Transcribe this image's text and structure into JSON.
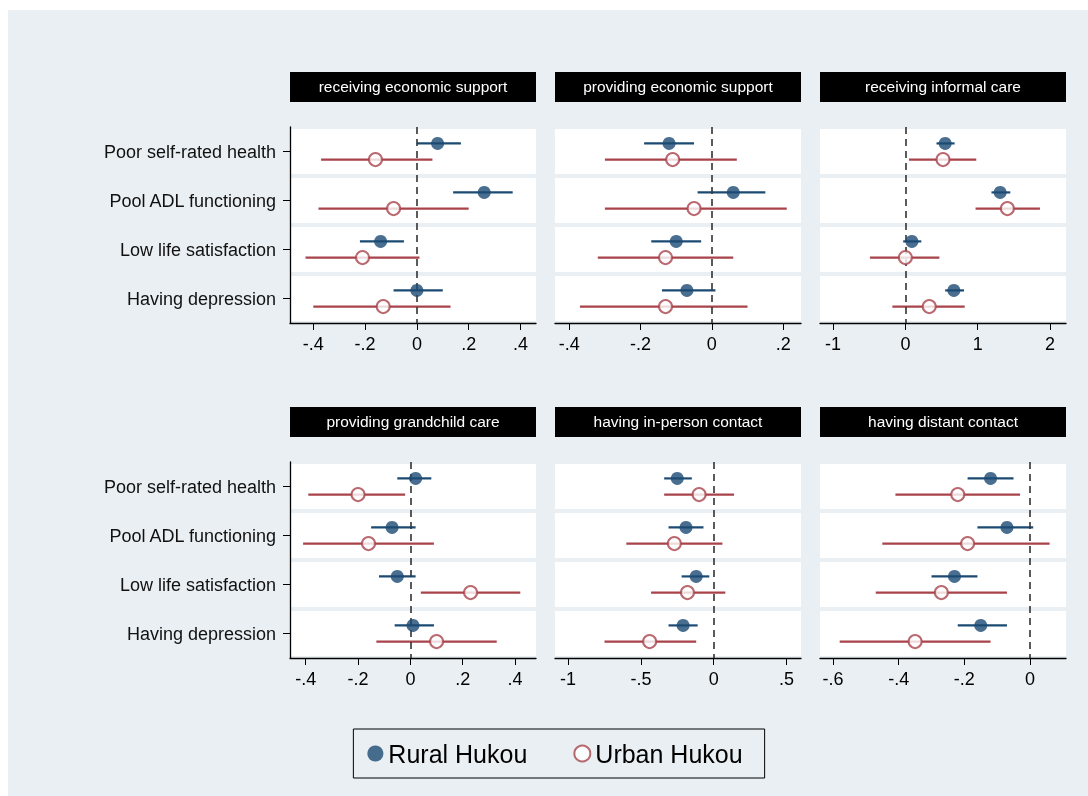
{
  "chart_data": [
    {
      "type": "scatter",
      "title": "receiving economic support",
      "orientation": "horizontal",
      "categories": [
        "Poor self-rated health",
        "Pool ADL functioning",
        "Low life satisfaction",
        "Having depression"
      ],
      "series": [
        {
          "color": "#1b4a73",
          "values": [
            0.08,
            0.26,
            -0.14,
            0.0
          ],
          "errors": [
            [
              0.0,
              0.17
            ],
            [
              0.14,
              0.37
            ],
            [
              -0.22,
              -0.05
            ],
            [
              -0.09,
              0.1
            ]
          ]
        },
        {
          "color": "#a8434b",
          "values": [
            -0.16,
            -0.09,
            -0.21,
            -0.13
          ],
          "errors": [
            [
              -0.37,
              0.06
            ],
            [
              -0.38,
              0.2
            ],
            [
              -0.43,
              0.01
            ],
            [
              -0.4,
              0.13
            ]
          ]
        }
      ],
      "xlim": [
        -0.49,
        0.46
      ],
      "xticks": [
        {
          "value": -0.4,
          "label": "-.4"
        },
        {
          "value": -0.2,
          "label": "-.2"
        },
        0,
        {
          "value": 0.2,
          "label": ".2"
        },
        {
          "value": 0.4,
          "label": ".4"
        }
      ],
      "ref_lines": [
        {
          "axis": "x",
          "value": 0,
          "color": "#333333",
          "line_style": "dashed"
        }
      ],
      "grid": "y",
      "marker": "circle"
    },
    {
      "type": "scatter",
      "title": "providing economic support",
      "orientation": "horizontal",
      "categories": [
        null,
        null,
        null,
        null
      ],
      "series": [
        {
          "color": "#1b4a73",
          "values": [
            -0.12,
            0.06,
            -0.1,
            -0.07
          ],
          "errors": [
            [
              -0.19,
              -0.05
            ],
            [
              -0.04,
              0.15
            ],
            [
              -0.17,
              -0.03
            ],
            [
              -0.14,
              0.01
            ]
          ]
        },
        {
          "color": "#a8434b",
          "values": [
            -0.11,
            -0.05,
            -0.13,
            -0.13
          ],
          "errors": [
            [
              -0.3,
              0.07
            ],
            [
              -0.3,
              0.21
            ],
            [
              -0.32,
              0.06
            ],
            [
              -0.37,
              0.1
            ]
          ]
        }
      ],
      "xlim": [
        -0.44,
        0.25
      ],
      "xticks": [
        {
          "value": -0.4,
          "label": "-.4"
        },
        {
          "value": -0.2,
          "label": "-.2"
        },
        0,
        {
          "value": 0.2,
          "label": ".2"
        }
      ],
      "ref_lines": [
        {
          "axis": "x",
          "value": 0,
          "color": "#333333",
          "line_style": "dashed"
        }
      ],
      "grid": "y",
      "marker": "circle",
      "tick_labels": "x"
    },
    {
      "type": "scatter",
      "title": "receiving informal care",
      "orientation": "horizontal",
      "categories": [
        null,
        null,
        null,
        null
      ],
      "series": [
        {
          "color": "#1b4a73",
          "values": [
            0.55,
            1.31,
            0.09,
            0.67
          ],
          "errors": [
            [
              0.43,
              0.68
            ],
            [
              1.19,
              1.45
            ],
            [
              -0.03,
              0.22
            ],
            [
              0.55,
              0.81
            ]
          ]
        },
        {
          "color": "#a8434b",
          "values": [
            0.52,
            1.41,
            0.0,
            0.33
          ],
          "errors": [
            [
              0.05,
              0.98
            ],
            [
              0.97,
              1.86
            ],
            [
              -0.49,
              0.47
            ],
            [
              -0.18,
              0.82
            ]
          ]
        }
      ],
      "xlim": [
        -1.18,
        2.22
      ],
      "xticks": [
        -1,
        0,
        1,
        2
      ],
      "ref_lines": [
        {
          "axis": "x",
          "value": 0,
          "color": "#333333",
          "line_style": "dashed"
        }
      ],
      "grid": "y",
      "marker": "circle",
      "tick_labels": "x"
    },
    {
      "type": "scatter",
      "title": "providing grandchild care",
      "orientation": "horizontal",
      "categories": [
        "Poor self-rated health",
        "Pool ADL functioning",
        "Low life satisfaction",
        "Having depression"
      ],
      "series": [
        {
          "color": "#1b4a73",
          "values": [
            0.02,
            -0.07,
            -0.05,
            0.01
          ],
          "errors": [
            [
              -0.05,
              0.08
            ],
            [
              -0.15,
              0.02
            ],
            [
              -0.12,
              0.02
            ],
            [
              -0.06,
              0.09
            ]
          ]
        },
        {
          "color": "#a8434b",
          "values": [
            -0.2,
            -0.16,
            0.23,
            0.1
          ],
          "errors": [
            [
              -0.39,
              -0.02
            ],
            [
              -0.41,
              0.09
            ],
            [
              0.04,
              0.42
            ],
            [
              -0.13,
              0.33
            ]
          ]
        }
      ],
      "xlim": [
        -0.46,
        0.48
      ],
      "xticks": [
        {
          "value": -0.4,
          "label": "-.4"
        },
        {
          "value": -0.2,
          "label": "-.2"
        },
        0,
        {
          "value": 0.2,
          "label": ".2"
        },
        {
          "value": 0.4,
          "label": ".4"
        }
      ],
      "ref_lines": [
        {
          "axis": "x",
          "value": 0,
          "color": "#333333",
          "line_style": "dashed"
        }
      ],
      "grid": "y",
      "marker": "circle"
    },
    {
      "type": "scatter",
      "title": "having in-person contact",
      "orientation": "horizontal",
      "categories": [
        null,
        null,
        null,
        null
      ],
      "series": [
        {
          "name": "Rural Hukou",
          "color": "#1b4a73",
          "values": [
            -0.25,
            -0.19,
            -0.12,
            -0.21
          ],
          "errors": [
            [
              -0.34,
              -0.15
            ],
            [
              -0.31,
              -0.07
            ],
            [
              -0.22,
              -0.03
            ],
            [
              -0.31,
              -0.11
            ]
          ]
        },
        {
          "name": "Urban Hukou",
          "color": "#a8434b",
          "values": [
            -0.1,
            -0.27,
            -0.18,
            -0.44
          ],
          "errors": [
            [
              -0.34,
              0.14
            ],
            [
              -0.6,
              0.06
            ],
            [
              -0.43,
              0.08
            ],
            [
              -0.75,
              -0.12
            ]
          ]
        }
      ],
      "xlim": [
        -1.09,
        0.6
      ],
      "xticks": [
        -1,
        {
          "value": -0.5,
          "label": "-.5"
        },
        0,
        {
          "value": 0.5,
          "label": ".5"
        }
      ],
      "ref_lines": [
        {
          "axis": "x",
          "value": 0,
          "color": "#333333",
          "line_style": "dashed"
        }
      ],
      "grid": "y",
      "marker": "circle",
      "tick_labels": "x",
      "legend": "bottom"
    },
    {
      "type": "scatter",
      "title": "having distant contact",
      "orientation": "horizontal",
      "categories": [
        null,
        null,
        null,
        null
      ],
      "series": [
        {
          "color": "#1b4a73",
          "values": [
            -0.12,
            -0.07,
            -0.23,
            -0.15
          ],
          "errors": [
            [
              -0.19,
              -0.05
            ],
            [
              -0.16,
              0.01
            ],
            [
              -0.3,
              -0.16
            ],
            [
              -0.22,
              -0.07
            ]
          ]
        },
        {
          "color": "#a8434b",
          "values": [
            -0.22,
            -0.19,
            -0.27,
            -0.35
          ],
          "errors": [
            [
              -0.41,
              -0.03
            ],
            [
              -0.45,
              0.06
            ],
            [
              -0.47,
              -0.07
            ],
            [
              -0.58,
              -0.12
            ]
          ]
        }
      ],
      "xlim": [
        -0.64,
        0.11
      ],
      "xticks": [
        {
          "value": -0.6,
          "label": "-.6"
        },
        {
          "value": -0.4,
          "label": "-.4"
        },
        {
          "value": -0.2,
          "label": "-.2"
        },
        0
      ],
      "ref_lines": [
        {
          "axis": "x",
          "value": 0,
          "color": "#333333",
          "line_style": "dashed"
        }
      ],
      "grid": "y",
      "marker": "circle",
      "tick_labels": "x"
    }
  ]
}
